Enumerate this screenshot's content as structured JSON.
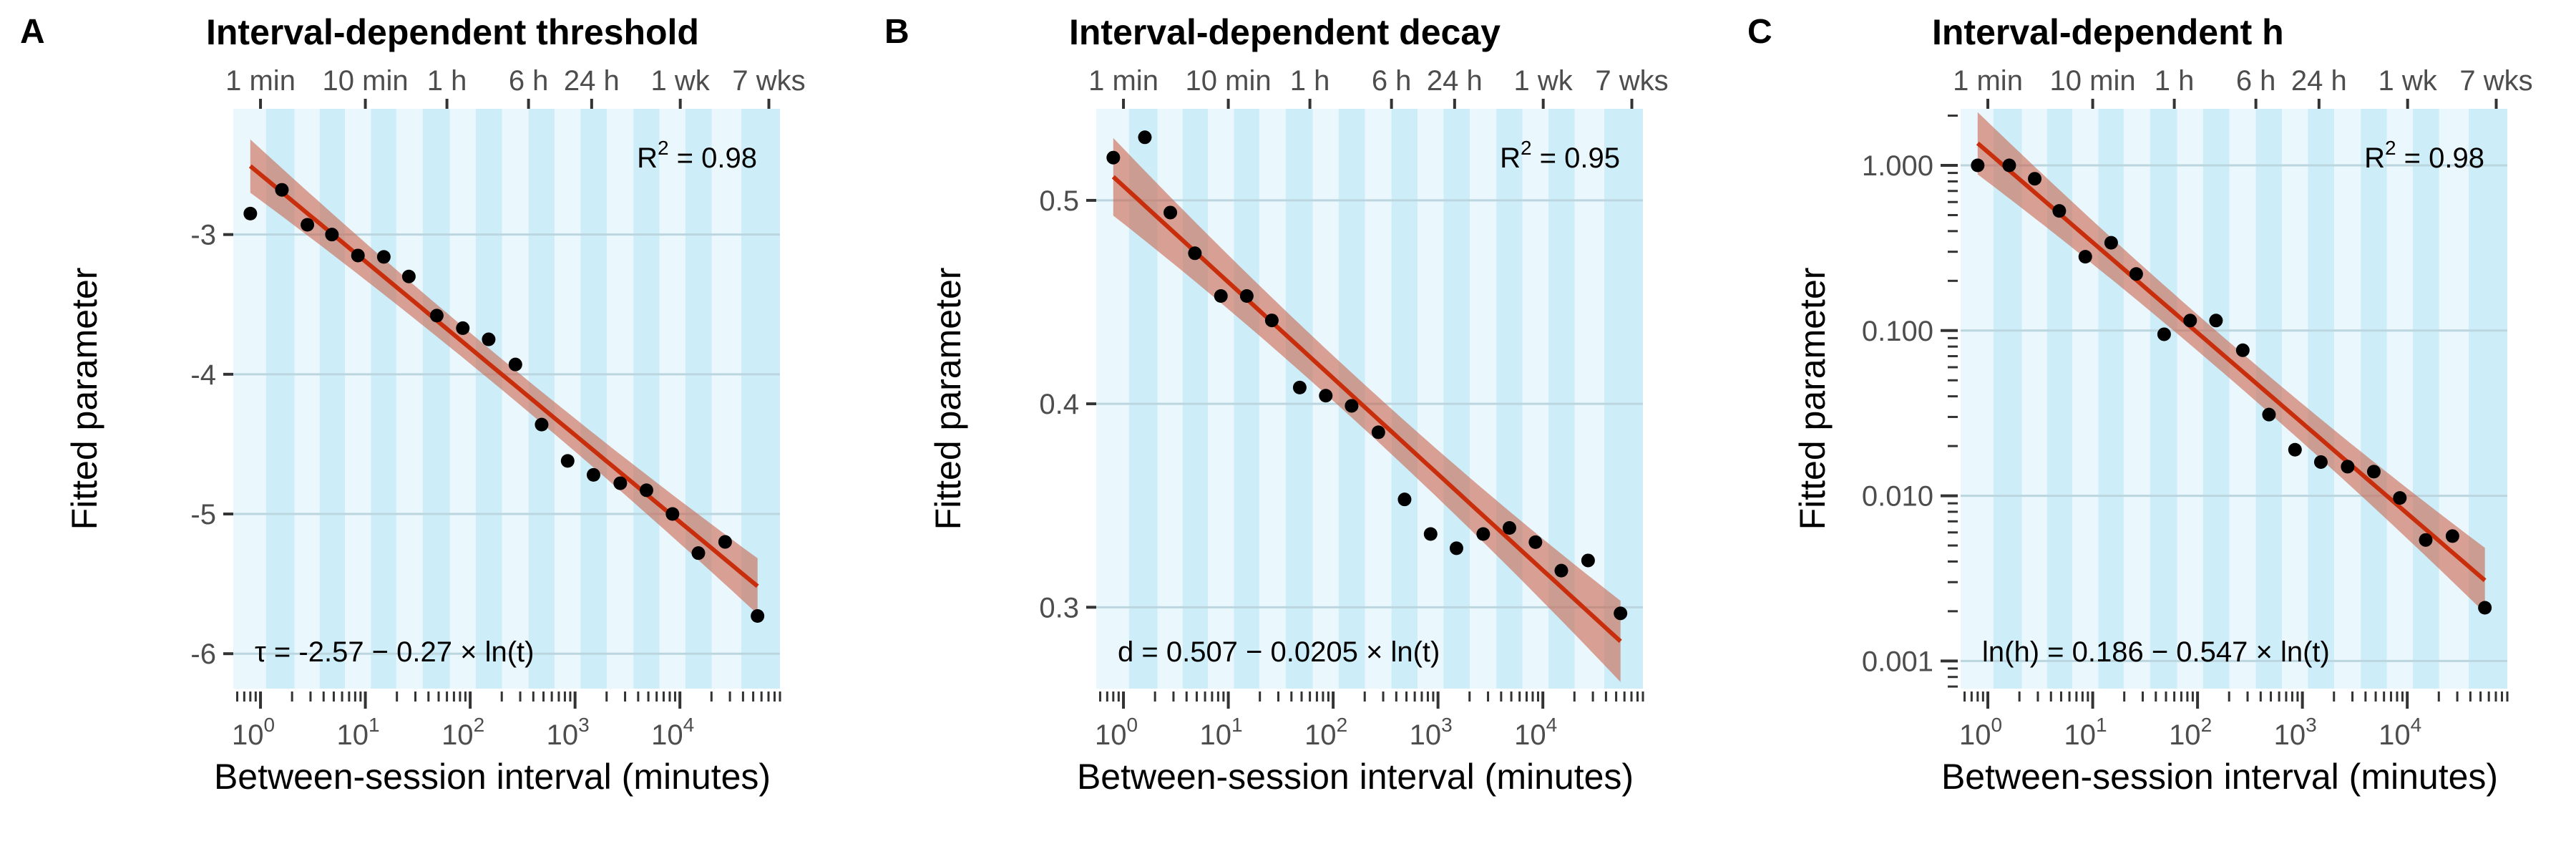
{
  "colors": {
    "band_light": "#eaf7fd",
    "band_dark": "#cdedf9",
    "gridline": "#bcd6e0",
    "fit_line": "#c82e0c",
    "ribbon": "#c85a3e",
    "point": "#000000",
    "tick": "#333333"
  },
  "shared": {
    "xlabel": "Between-session interval (minutes)",
    "ylabel": "Fitted parameter",
    "x_scale": "log10",
    "xlim": [
      0.55,
      90000
    ],
    "x_major_ticks": [
      1,
      10,
      100,
      1000,
      10000
    ],
    "x_tick_labels": [
      {
        "base": "10",
        "exp": "0"
      },
      {
        "base": "10",
        "exp": "1"
      },
      {
        "base": "10",
        "exp": "2"
      },
      {
        "base": "10",
        "exp": "3"
      },
      {
        "base": "10",
        "exp": "4"
      }
    ],
    "top_axis": [
      {
        "label": "1 min",
        "minutes": 1
      },
      {
        "label": "10 min",
        "minutes": 10
      },
      {
        "label": "1 h",
        "minutes": 60
      },
      {
        "label": "6 h",
        "minutes": 360
      },
      {
        "label": "24 h",
        "minutes": 1440
      },
      {
        "label": "1 wk",
        "minutes": 10080
      },
      {
        "label": "7 wks",
        "minutes": 70560
      }
    ],
    "x_intervals": [
      0.8,
      1.6,
      2.8,
      4.8,
      8.5,
      15,
      26,
      48,
      85,
      150,
      270,
      480,
      850,
      1500,
      2700,
      4800,
      8500,
      15000,
      27000,
      55000
    ]
  },
  "chart_data": [
    {
      "panel": "A",
      "type": "scatter",
      "title": "Interval-dependent threshold",
      "xlabel": "Between-session interval (minutes)",
      "ylabel": "Fitted parameter",
      "y_scale": "linear",
      "ylim": [
        -6.25,
        -2.1
      ],
      "y_ticks": [
        -6,
        -5,
        -4,
        -3
      ],
      "y_tick_labels": [
        "-6",
        "-5",
        "-4",
        "-3"
      ],
      "r2_label": "R",
      "r2_sup": "2",
      "r2_value": " = 0.98",
      "equation": "τ = -2.57 − 0.27 × ln(t)",
      "fit": {
        "intercept": -2.57,
        "slope": -0.27,
        "space": "linear"
      },
      "ribbon_halfwidth": 0.11,
      "points": [
        {
          "x": 0.8,
          "y": -2.85
        },
        {
          "x": 1.6,
          "y": -2.68
        },
        {
          "x": 2.8,
          "y": -2.93
        },
        {
          "x": 4.8,
          "y": -3.0
        },
        {
          "x": 8.5,
          "y": -3.15
        },
        {
          "x": 15,
          "y": -3.16
        },
        {
          "x": 26,
          "y": -3.3
        },
        {
          "x": 48,
          "y": -3.58
        },
        {
          "x": 85,
          "y": -3.67
        },
        {
          "x": 150,
          "y": -3.75
        },
        {
          "x": 270,
          "y": -3.93
        },
        {
          "x": 480,
          "y": -4.36
        },
        {
          "x": 850,
          "y": -4.62
        },
        {
          "x": 1500,
          "y": -4.72
        },
        {
          "x": 2700,
          "y": -4.78
        },
        {
          "x": 4800,
          "y": -4.83
        },
        {
          "x": 8500,
          "y": -5.0
        },
        {
          "x": 15000,
          "y": -5.28
        },
        {
          "x": 27000,
          "y": -5.2
        },
        {
          "x": 55000,
          "y": -5.73
        }
      ]
    },
    {
      "panel": "B",
      "type": "scatter",
      "title": "Interval-dependent decay",
      "xlabel": "Between-session interval (minutes)",
      "ylabel": "Fitted parameter",
      "y_scale": "linear",
      "ylim": [
        0.26,
        0.545
      ],
      "y_ticks": [
        0.3,
        0.4,
        0.5
      ],
      "y_tick_labels": [
        "0.3",
        "0.4",
        "0.5"
      ],
      "r2_label": "R",
      "r2_sup": "2",
      "r2_value": " = 0.95",
      "equation": "d = 0.507 − 0.0205 × ln(t)",
      "fit": {
        "intercept": 0.507,
        "slope": -0.0205,
        "space": "linear"
      },
      "ribbon_halfwidth": 0.011,
      "points": [
        {
          "x": 0.8,
          "y": 0.521
        },
        {
          "x": 1.6,
          "y": 0.531
        },
        {
          "x": 2.8,
          "y": 0.494
        },
        {
          "x": 4.8,
          "y": 0.474
        },
        {
          "x": 8.5,
          "y": 0.453
        },
        {
          "x": 15,
          "y": 0.453
        },
        {
          "x": 26,
          "y": 0.441
        },
        {
          "x": 48,
          "y": 0.408
        },
        {
          "x": 85,
          "y": 0.404
        },
        {
          "x": 150,
          "y": 0.399
        },
        {
          "x": 270,
          "y": 0.386
        },
        {
          "x": 480,
          "y": 0.353
        },
        {
          "x": 850,
          "y": 0.336
        },
        {
          "x": 1500,
          "y": 0.329
        },
        {
          "x": 2700,
          "y": 0.336
        },
        {
          "x": 4800,
          "y": 0.339
        },
        {
          "x": 8500,
          "y": 0.332
        },
        {
          "x": 15000,
          "y": 0.318
        },
        {
          "x": 27000,
          "y": 0.323
        },
        {
          "x": 55000,
          "y": 0.297
        }
      ]
    },
    {
      "panel": "C",
      "type": "scatter",
      "title": "Interval-dependent h",
      "xlabel": "Between-session interval (minutes)",
      "ylabel": "Fitted parameter",
      "y_scale": "log10",
      "ylim": [
        0.00068,
        2.2
      ],
      "y_ticks": [
        0.001,
        0.01,
        0.1,
        1
      ],
      "y_tick_labels": [
        "0.001",
        "0.010",
        "0.100",
        "1.000"
      ],
      "r2_label": "R",
      "r2_sup": "2",
      "r2_value": " = 0.98",
      "equation": "ln(h) = 0.186 − 0.547 × ln(t)",
      "fit": {
        "intercept": 0.186,
        "slope": -0.547,
        "space": "log"
      },
      "ribbon_halfwidth": 0.25,
      "points": [
        {
          "x": 0.8,
          "y": 1.0
        },
        {
          "x": 1.6,
          "y": 1.0
        },
        {
          "x": 2.8,
          "y": 0.83
        },
        {
          "x": 4.8,
          "y": 0.53
        },
        {
          "x": 8.5,
          "y": 0.28
        },
        {
          "x": 15,
          "y": 0.34
        },
        {
          "x": 26,
          "y": 0.22
        },
        {
          "x": 48,
          "y": 0.095
        },
        {
          "x": 85,
          "y": 0.115
        },
        {
          "x": 150,
          "y": 0.115
        },
        {
          "x": 270,
          "y": 0.076
        },
        {
          "x": 480,
          "y": 0.031
        },
        {
          "x": 850,
          "y": 0.019
        },
        {
          "x": 1500,
          "y": 0.016
        },
        {
          "x": 2700,
          "y": 0.015
        },
        {
          "x": 4800,
          "y": 0.014
        },
        {
          "x": 8500,
          "y": 0.0097
        },
        {
          "x": 15000,
          "y": 0.0054
        },
        {
          "x": 27000,
          "y": 0.0057
        },
        {
          "x": 55000,
          "y": 0.0021
        }
      ]
    }
  ]
}
